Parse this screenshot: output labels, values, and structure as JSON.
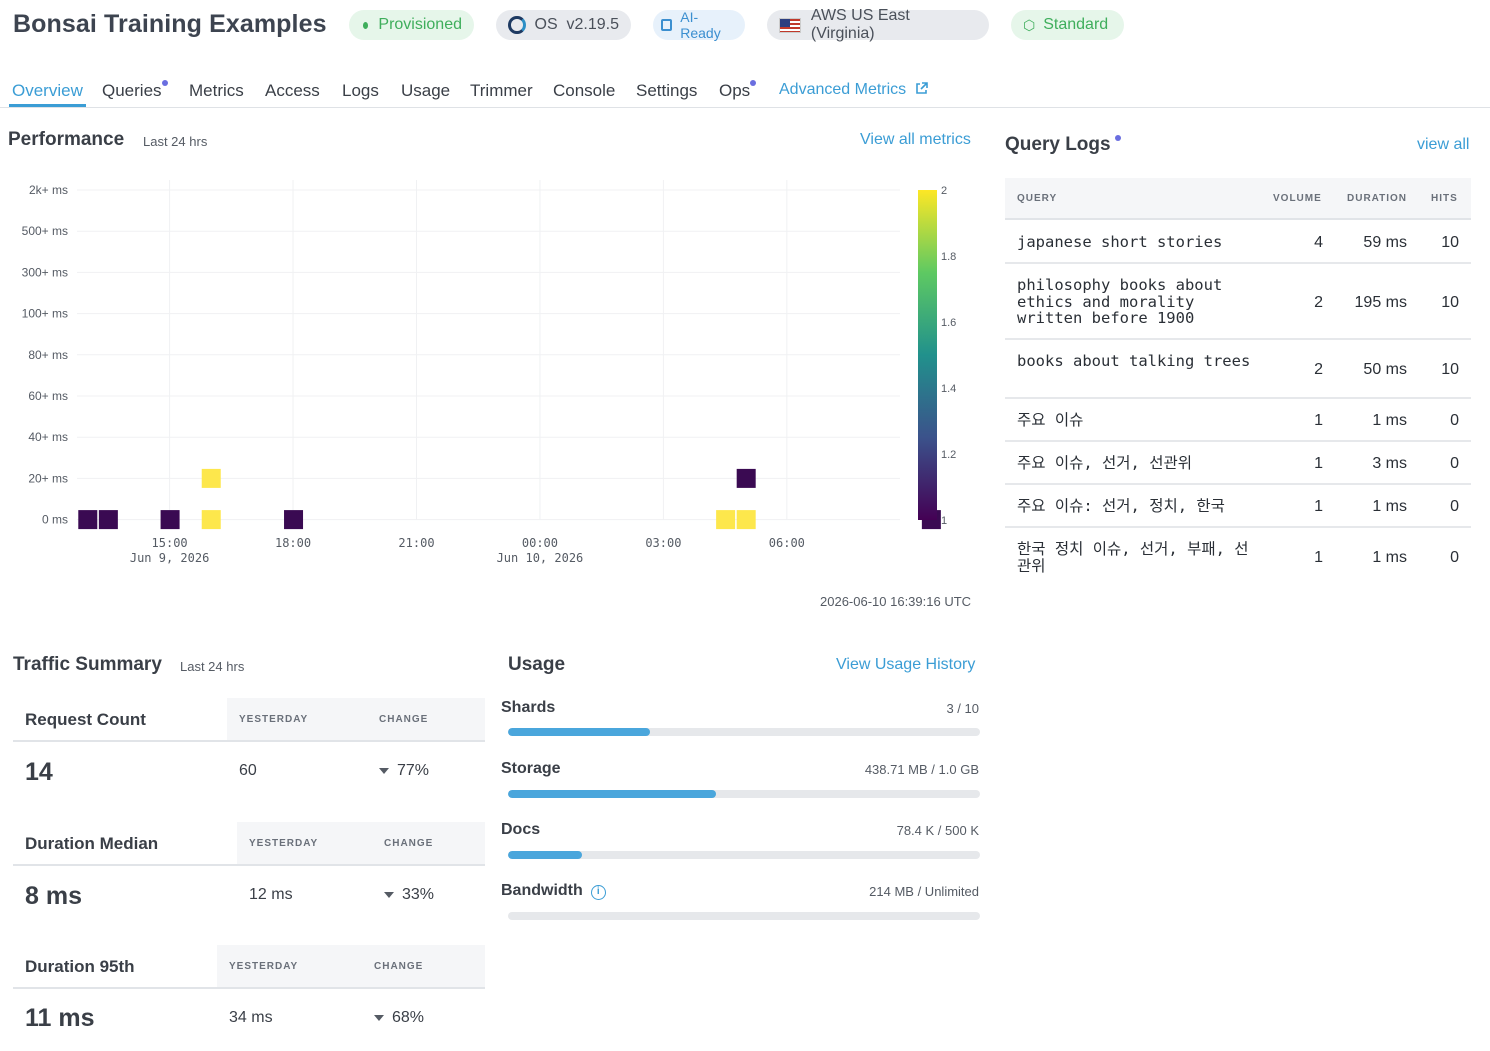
{
  "header": {
    "title": "Bonsai Training Examples",
    "badges": {
      "provisioned": "Provisioned",
      "os": "OS  v2.19.5",
      "ai": "AI-Ready",
      "region": "AWS US East (Virginia)",
      "plan": "Standard"
    }
  },
  "tabs": [
    {
      "label": "Overview"
    },
    {
      "label": "Queries"
    },
    {
      "label": "Metrics"
    },
    {
      "label": "Access"
    },
    {
      "label": "Logs"
    },
    {
      "label": "Usage"
    },
    {
      "label": "Trimmer"
    },
    {
      "label": "Console"
    },
    {
      "label": "Settings"
    },
    {
      "label": "Ops"
    },
    {
      "label": "Advanced Metrics"
    }
  ],
  "performance": {
    "title": "Performance",
    "subtitle": "Last 24 hrs",
    "link": "View all metrics",
    "timestamp": "2026-06-10 16:39:16 UTC"
  },
  "chart_data": {
    "type": "heatmap",
    "y_categories": [
      "0 ms",
      "20+ ms",
      "40+ ms",
      "60+ ms",
      "80+ ms",
      "100+ ms",
      "300+ ms",
      "500+ ms",
      "2k+ ms"
    ],
    "x_ticks": [
      {
        "label": "15:00",
        "sub": "Jun 9, 2026",
        "t": 15
      },
      {
        "label": "18:00",
        "sub": "",
        "t": 18
      },
      {
        "label": "21:00",
        "sub": "",
        "t": 21
      },
      {
        "label": "00:00",
        "sub": "Jun 10, 2026",
        "t": 24
      },
      {
        "label": "03:00",
        "sub": "",
        "t": 27
      },
      {
        "label": "06:00",
        "sub": "",
        "t": 30
      }
    ],
    "x_range": [
      12.75,
      32.75
    ],
    "cells": [
      {
        "t": 13.0,
        "bucket": "0 ms",
        "count": 1
      },
      {
        "t": 13.5,
        "bucket": "0 ms",
        "count": 1
      },
      {
        "t": 15.0,
        "bucket": "0 ms",
        "count": 1
      },
      {
        "t": 16.0,
        "bucket": "0 ms",
        "count": 2
      },
      {
        "t": 16.0,
        "bucket": "20+ ms",
        "count": 2
      },
      {
        "t": 18.0,
        "bucket": "0 ms",
        "count": 1
      },
      {
        "t": 28.5,
        "bucket": "0 ms",
        "count": 2
      },
      {
        "t": 29.0,
        "bucket": "0 ms",
        "count": 2
      },
      {
        "t": 29.0,
        "bucket": "20+ ms",
        "count": 1
      },
      {
        "t": 33.5,
        "bucket": "0 ms",
        "count": 1
      }
    ],
    "colorbar": {
      "min": 1,
      "max": 2,
      "ticks": [
        "2",
        "1.8",
        "1.6",
        "1.4",
        "1.2",
        "1"
      ]
    }
  },
  "query_logs": {
    "title": "Query Logs",
    "link": "view all",
    "columns": [
      "QUERY",
      "VOLUME",
      "DURATION",
      "HITS"
    ],
    "rows": [
      {
        "query": "japanese short stories",
        "volume": "4",
        "duration": "59 ms",
        "hits": "10"
      },
      {
        "query": "philosophy books about ethics and morality written before 1900",
        "volume": "2",
        "duration": "195 ms",
        "hits": "10"
      },
      {
        "query": "books about talking trees",
        "volume": "2",
        "duration": "50 ms",
        "hits": "10"
      },
      {
        "query": "주요 이슈",
        "volume": "1",
        "duration": "1 ms",
        "hits": "0"
      },
      {
        "query": "주요 이슈, 선거, 선관위",
        "volume": "1",
        "duration": "3 ms",
        "hits": "0"
      },
      {
        "query": "주요 이슈: 선거, 정치, 한국",
        "volume": "1",
        "duration": "1 ms",
        "hits": "0"
      },
      {
        "query": "한국 정치 이슈, 선거, 부패, 선관위",
        "volume": "1",
        "duration": "1 ms",
        "hits": "0"
      }
    ]
  },
  "traffic": {
    "title": "Traffic Summary",
    "subtitle": "Last 24 hrs",
    "col_yesterday": "YESTERDAY",
    "col_change": "CHANGE",
    "request_count": {
      "label": "Request Count",
      "value": "14",
      "yesterday": "60",
      "change": "77%"
    },
    "duration_median": {
      "label": "Duration Median",
      "value": "8 ms",
      "yesterday": "12 ms",
      "change": "33%"
    },
    "duration_95": {
      "label": "Duration 95th",
      "value": "11 ms",
      "yesterday": "34 ms",
      "change": "68%"
    }
  },
  "usage": {
    "title": "Usage",
    "link": "View Usage History",
    "shards": {
      "label": "Shards",
      "value": "3 / 10",
      "fraction": 0.3
    },
    "storage": {
      "label": "Storage",
      "value": "438.71 MB / 1.0 GB",
      "fraction": 0.44
    },
    "docs": {
      "label": "Docs",
      "value": "78.4 K / 500 K",
      "fraction": 0.157
    },
    "bandwidth": {
      "label": "Bandwidth",
      "value": "214 MB / Unlimited",
      "fraction": 0
    }
  }
}
